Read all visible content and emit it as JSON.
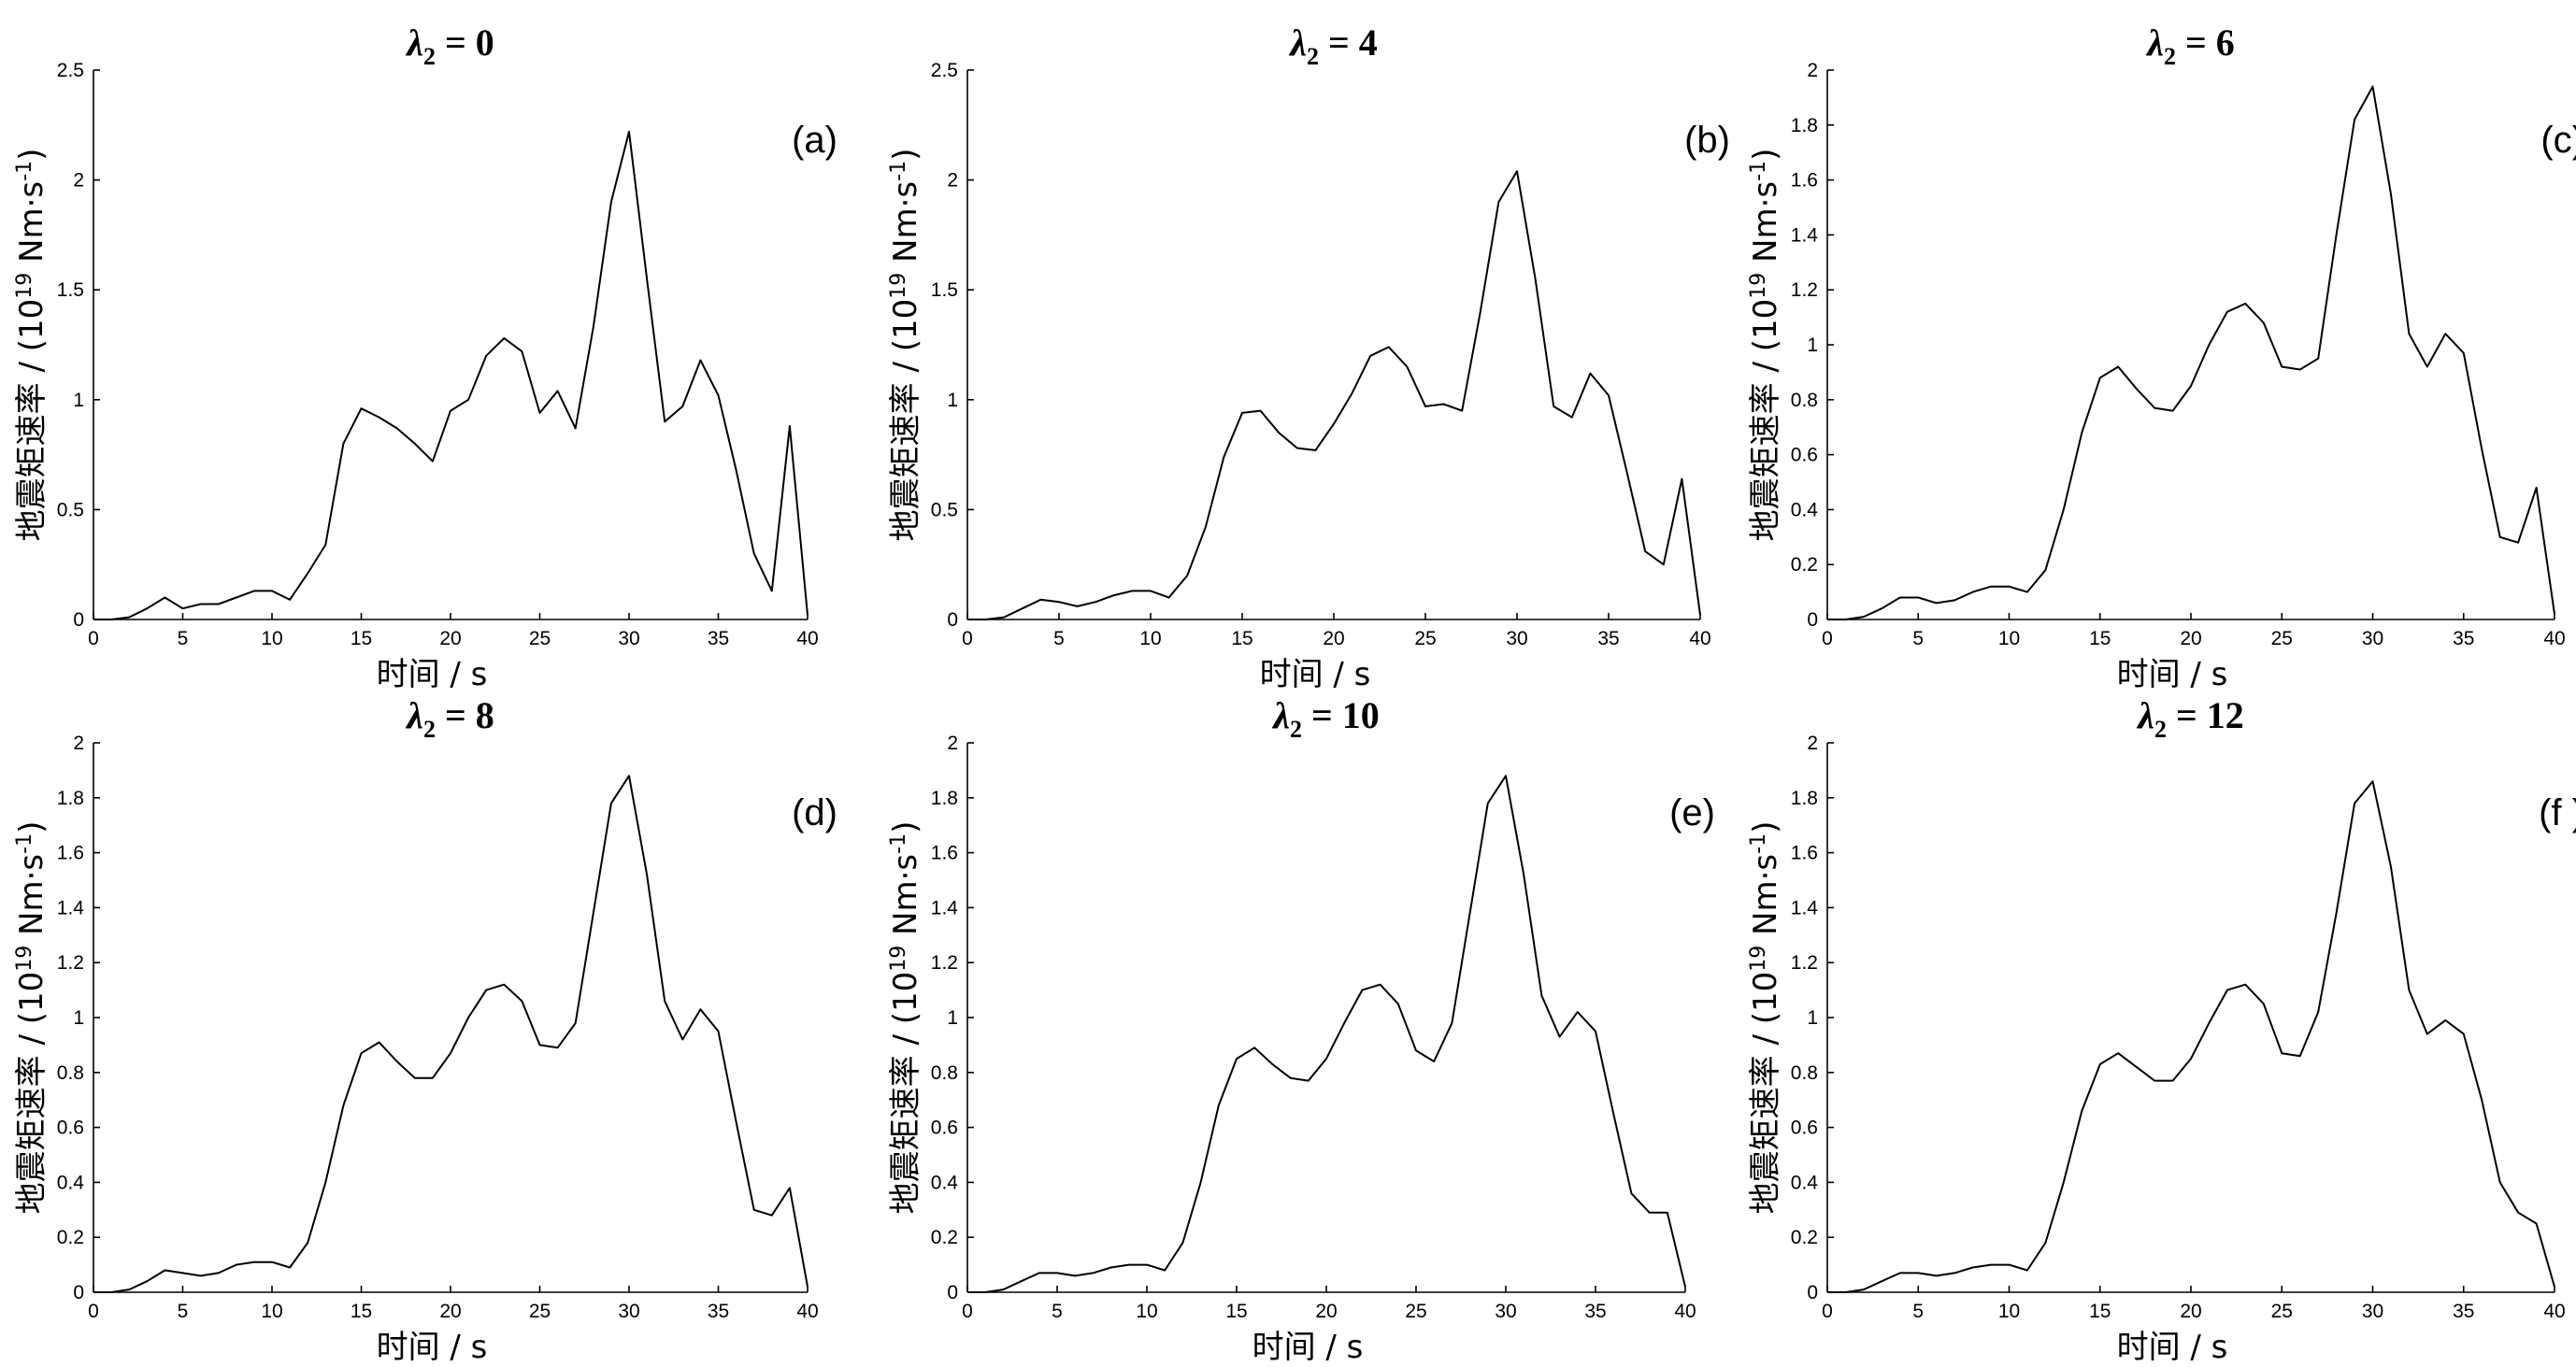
{
  "chart_data": [
    {
      "type": "line",
      "panel_label": "(a)",
      "title_symbol": "λ",
      "title_subscript": "2",
      "title_value": " = 0",
      "xlabel": "时间 / s",
      "ylabel_main": "地震矩速率 / (10",
      "ylabel_sup1": "19",
      "ylabel_mid": " Nm·s",
      "ylabel_sup2": "-1",
      "ylabel_end": ")",
      "xlim": [
        0,
        40
      ],
      "ylim": [
        0,
        2.5
      ],
      "xticks": [
        0,
        5,
        10,
        15,
        20,
        25,
        30,
        35,
        40
      ],
      "yticks": [
        0,
        0.5,
        1,
        1.5,
        2,
        2.5
      ],
      "x": [
        0,
        1,
        2,
        3,
        4,
        5,
        6,
        7,
        8,
        9,
        10,
        11,
        12,
        13,
        14,
        15,
        16,
        17,
        18,
        19,
        20,
        21,
        22,
        23,
        24,
        25,
        26,
        27,
        28,
        29,
        30,
        31,
        32,
        33,
        34,
        35,
        36,
        37,
        38,
        39,
        40
      ],
      "y": [
        0,
        0,
        0.01,
        0.05,
        0.1,
        0.05,
        0.07,
        0.07,
        0.1,
        0.13,
        0.13,
        0.09,
        0.21,
        0.34,
        0.8,
        0.96,
        0.92,
        0.87,
        0.8,
        0.72,
        0.95,
        1.0,
        1.2,
        1.28,
        1.22,
        0.94,
        1.04,
        0.87,
        1.33,
        1.9,
        2.22,
        1.55,
        0.9,
        0.97,
        1.18,
        1.02,
        0.68,
        0.3,
        0.13,
        0.88,
        0.02
      ]
    },
    {
      "type": "line",
      "panel_label": "(b)",
      "title_symbol": "λ",
      "title_subscript": "2",
      "title_value": " = 4",
      "xlabel": "时间 / s",
      "ylabel_main": "地震矩速率 / (10",
      "ylabel_sup1": "19",
      "ylabel_mid": " Nm·s",
      "ylabel_sup2": "-1",
      "ylabel_end": ")",
      "xlim": [
        0,
        40
      ],
      "ylim": [
        0,
        2.5
      ],
      "xticks": [
        0,
        5,
        10,
        15,
        20,
        25,
        30,
        35,
        40
      ],
      "yticks": [
        0,
        0.5,
        1,
        1.5,
        2,
        2.5
      ],
      "x": [
        0,
        1,
        2,
        3,
        4,
        5,
        6,
        7,
        8,
        9,
        10,
        11,
        12,
        13,
        14,
        15,
        16,
        17,
        18,
        19,
        20,
        21,
        22,
        23,
        24,
        25,
        26,
        27,
        28,
        29,
        30,
        31,
        32,
        33,
        34,
        35,
        36,
        37,
        38,
        39,
        40
      ],
      "y": [
        0,
        0,
        0.01,
        0.05,
        0.09,
        0.08,
        0.06,
        0.08,
        0.11,
        0.13,
        0.13,
        0.1,
        0.2,
        0.42,
        0.74,
        0.94,
        0.95,
        0.85,
        0.78,
        0.77,
        0.89,
        1.03,
        1.2,
        1.24,
        1.15,
        0.97,
        0.98,
        0.95,
        1.4,
        1.9,
        2.04,
        1.55,
        0.97,
        0.92,
        1.12,
        1.02,
        0.67,
        0.31,
        0.25,
        0.64,
        0.02
      ]
    },
    {
      "type": "line",
      "panel_label": "(c)",
      "title_symbol": "λ",
      "title_subscript": "2",
      "title_value": " = 6",
      "xlabel": "时间 / s",
      "ylabel_main": "地震矩速率 / (10",
      "ylabel_sup1": "19",
      "ylabel_mid": " Nm·s",
      "ylabel_sup2": "-1",
      "ylabel_end": ")",
      "xlim": [
        0,
        40
      ],
      "ylim": [
        0,
        2
      ],
      "xticks": [
        0,
        5,
        10,
        15,
        20,
        25,
        30,
        35,
        40
      ],
      "yticks": [
        0,
        0.2,
        0.4,
        0.6,
        0.8,
        1,
        1.2,
        1.4,
        1.6,
        1.8,
        2
      ],
      "x": [
        0,
        1,
        2,
        3,
        4,
        5,
        6,
        7,
        8,
        9,
        10,
        11,
        12,
        13,
        14,
        15,
        16,
        17,
        18,
        19,
        20,
        21,
        22,
        23,
        24,
        25,
        26,
        27,
        28,
        29,
        30,
        31,
        32,
        33,
        34,
        35,
        36,
        37,
        38,
        39,
        40
      ],
      "y": [
        0,
        0,
        0.01,
        0.04,
        0.08,
        0.08,
        0.06,
        0.07,
        0.1,
        0.12,
        0.12,
        0.1,
        0.18,
        0.4,
        0.68,
        0.88,
        0.92,
        0.84,
        0.77,
        0.76,
        0.85,
        1.0,
        1.12,
        1.15,
        1.08,
        0.92,
        0.91,
        0.95,
        1.4,
        1.82,
        1.94,
        1.55,
        1.04,
        0.92,
        1.04,
        0.97,
        0.62,
        0.3,
        0.28,
        0.48,
        0.02
      ]
    },
    {
      "type": "line",
      "panel_label": "(d)",
      "title_symbol": "λ",
      "title_subscript": "2",
      "title_value": " = 8",
      "xlabel": "时间 / s",
      "ylabel_main": "地震矩速率 / (10",
      "ylabel_sup1": "19",
      "ylabel_mid": " Nm·s",
      "ylabel_sup2": "-1",
      "ylabel_end": ")",
      "xlim": [
        0,
        40
      ],
      "ylim": [
        0,
        2
      ],
      "xticks": [
        0,
        5,
        10,
        15,
        20,
        25,
        30,
        35,
        40
      ],
      "yticks": [
        0,
        0.2,
        0.4,
        0.6,
        0.8,
        1,
        1.2,
        1.4,
        1.6,
        1.8,
        2
      ],
      "x": [
        0,
        1,
        2,
        3,
        4,
        5,
        6,
        7,
        8,
        9,
        10,
        11,
        12,
        13,
        14,
        15,
        16,
        17,
        18,
        19,
        20,
        21,
        22,
        23,
        24,
        25,
        26,
        27,
        28,
        29,
        30,
        31,
        32,
        33,
        34,
        35,
        36,
        37,
        38,
        39,
        40
      ],
      "y": [
        0,
        0,
        0.01,
        0.04,
        0.08,
        0.07,
        0.06,
        0.07,
        0.1,
        0.11,
        0.11,
        0.09,
        0.18,
        0.4,
        0.68,
        0.87,
        0.91,
        0.84,
        0.78,
        0.78,
        0.87,
        1.0,
        1.1,
        1.12,
        1.06,
        0.9,
        0.89,
        0.98,
        1.38,
        1.78,
        1.88,
        1.52,
        1.06,
        0.92,
        1.03,
        0.95,
        0.62,
        0.3,
        0.28,
        0.38,
        0.02
      ]
    },
    {
      "type": "line",
      "panel_label": "(e)",
      "title_symbol": "λ",
      "title_subscript": "2",
      "title_value": " = 10",
      "xlabel": "时间 / s",
      "ylabel_main": "地震矩速率 / (10",
      "ylabel_sup1": "19",
      "ylabel_mid": " Nm·s",
      "ylabel_sup2": "-1",
      "ylabel_end": ")",
      "xlim": [
        0,
        40
      ],
      "ylim": [
        0,
        2
      ],
      "xticks": [
        0,
        5,
        10,
        15,
        20,
        25,
        30,
        35,
        40
      ],
      "yticks": [
        0,
        0.2,
        0.4,
        0.6,
        0.8,
        1,
        1.2,
        1.4,
        1.6,
        1.8,
        2
      ],
      "x": [
        0,
        1,
        2,
        3,
        4,
        5,
        6,
        7,
        8,
        9,
        10,
        11,
        12,
        13,
        14,
        15,
        16,
        17,
        18,
        19,
        20,
        21,
        22,
        23,
        24,
        25,
        26,
        27,
        28,
        29,
        30,
        31,
        32,
        33,
        34,
        35,
        36,
        37,
        38,
        39,
        40
      ],
      "y": [
        0,
        0,
        0.01,
        0.04,
        0.07,
        0.07,
        0.06,
        0.07,
        0.09,
        0.1,
        0.1,
        0.08,
        0.18,
        0.4,
        0.68,
        0.85,
        0.89,
        0.83,
        0.78,
        0.77,
        0.85,
        0.98,
        1.1,
        1.12,
        1.05,
        0.88,
        0.84,
        0.98,
        1.38,
        1.78,
        1.88,
        1.52,
        1.08,
        0.93,
        1.02,
        0.95,
        0.65,
        0.36,
        0.29,
        0.29,
        0.02
      ]
    },
    {
      "type": "line",
      "panel_label": "(f )",
      "title_symbol": "λ",
      "title_subscript": "2",
      "title_value": " = 12",
      "xlabel": "时间 / s",
      "ylabel_main": "地震矩速率 / (10",
      "ylabel_sup1": "19",
      "ylabel_mid": " Nm·s",
      "ylabel_sup2": "-1",
      "ylabel_end": ")",
      "xlim": [
        0,
        40
      ],
      "ylim": [
        0,
        2
      ],
      "xticks": [
        0,
        5,
        10,
        15,
        20,
        25,
        30,
        35,
        40
      ],
      "yticks": [
        0,
        0.2,
        0.4,
        0.6,
        0.8,
        1,
        1.2,
        1.4,
        1.6,
        1.8,
        2
      ],
      "x": [
        0,
        1,
        2,
        3,
        4,
        5,
        6,
        7,
        8,
        9,
        10,
        11,
        12,
        13,
        14,
        15,
        16,
        17,
        18,
        19,
        20,
        21,
        22,
        23,
        24,
        25,
        26,
        27,
        28,
        29,
        30,
        31,
        32,
        33,
        34,
        35,
        36,
        37,
        38,
        39,
        40
      ],
      "y": [
        0,
        0,
        0.01,
        0.04,
        0.07,
        0.07,
        0.06,
        0.07,
        0.09,
        0.1,
        0.1,
        0.08,
        0.18,
        0.4,
        0.66,
        0.83,
        0.87,
        0.82,
        0.77,
        0.77,
        0.85,
        0.98,
        1.1,
        1.12,
        1.05,
        0.87,
        0.86,
        1.02,
        1.38,
        1.78,
        1.86,
        1.55,
        1.1,
        0.94,
        0.99,
        0.94,
        0.7,
        0.4,
        0.29,
        0.25,
        0.02
      ]
    }
  ]
}
